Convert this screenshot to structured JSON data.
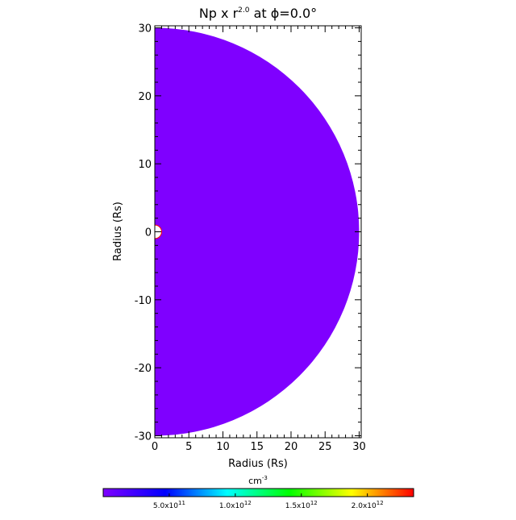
{
  "chart_data": {
    "type": "heatmap",
    "title_main": "Np x r",
    "title_exp": "2.0",
    "title_rest": " at ϕ=0.0°",
    "xlabel": "Radius (Rs)",
    "ylabel": "Radius (Rs)",
    "xlim": [
      0,
      30.3
    ],
    "ylim": [
      -30.3,
      30.3
    ],
    "xticks": [
      0,
      5,
      10,
      15,
      20,
      25,
      30
    ],
    "yticks": [
      -30,
      -20,
      -10,
      0,
      10,
      20,
      30
    ],
    "domain_outer_radius": 30,
    "domain_inner_radius": 1,
    "fill_value_color": "#7f00ff",
    "inner_boundary_color": "#ff0000",
    "colorbar": {
      "unit_main": "cm",
      "unit_exp": "-3",
      "range": [
        0,
        2350000000000.0
      ],
      "colors": [
        "#7f00ff",
        "#0000ff",
        "#00ffff",
        "#00ff00",
        "#ffff00",
        "#ff0000"
      ],
      "ticks": [
        {
          "value": 500000000000.0,
          "mant": "5.0x10",
          "exp": "11"
        },
        {
          "value": 1000000000000.0,
          "mant": "1.0x10",
          "exp": "12"
        },
        {
          "value": 1500000000000.0,
          "mant": "1.5x10",
          "exp": "12"
        },
        {
          "value": 2000000000000.0,
          "mant": "2.0x10",
          "exp": "12"
        }
      ]
    }
  }
}
